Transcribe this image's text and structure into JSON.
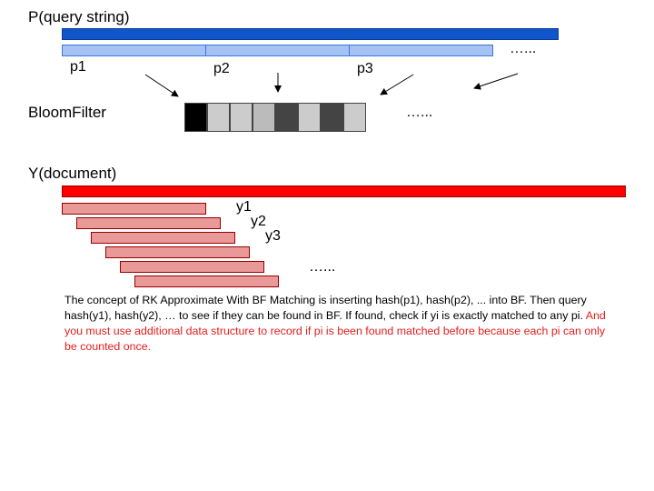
{
  "p_label": "P(query string)",
  "bf_label": "BloomFilter",
  "y_label": "Y(document)",
  "p_segments": [
    "p1",
    "p2",
    "p3"
  ],
  "y_segments": [
    "y1",
    "y2",
    "y3"
  ],
  "ellipsis": "…...",
  "bloom_cells": [
    "#000000",
    "#cccccc",
    "#cccccc",
    "#bbbbbb",
    "#444444",
    "#cccccc",
    "#444444",
    "#cccccc"
  ],
  "colors": {
    "p_bar": "#1155cc",
    "p_segment": "#a4c2f4",
    "y_bar": "#ff0000",
    "y_segment": "#ea9999",
    "highlight_text": "#e51c1c"
  },
  "description": {
    "normal": "The concept of RK Approximate With BF Matching is inserting hash(p1), hash(p2), ... into BF. Then query hash(y1), hash(y2), … to see if they can be found in BF. If found, check if yi is exactly matched to any pi. ",
    "highlight": "And you must use additional data structure to record if pi is been found matched before because each pi can only be counted once."
  }
}
